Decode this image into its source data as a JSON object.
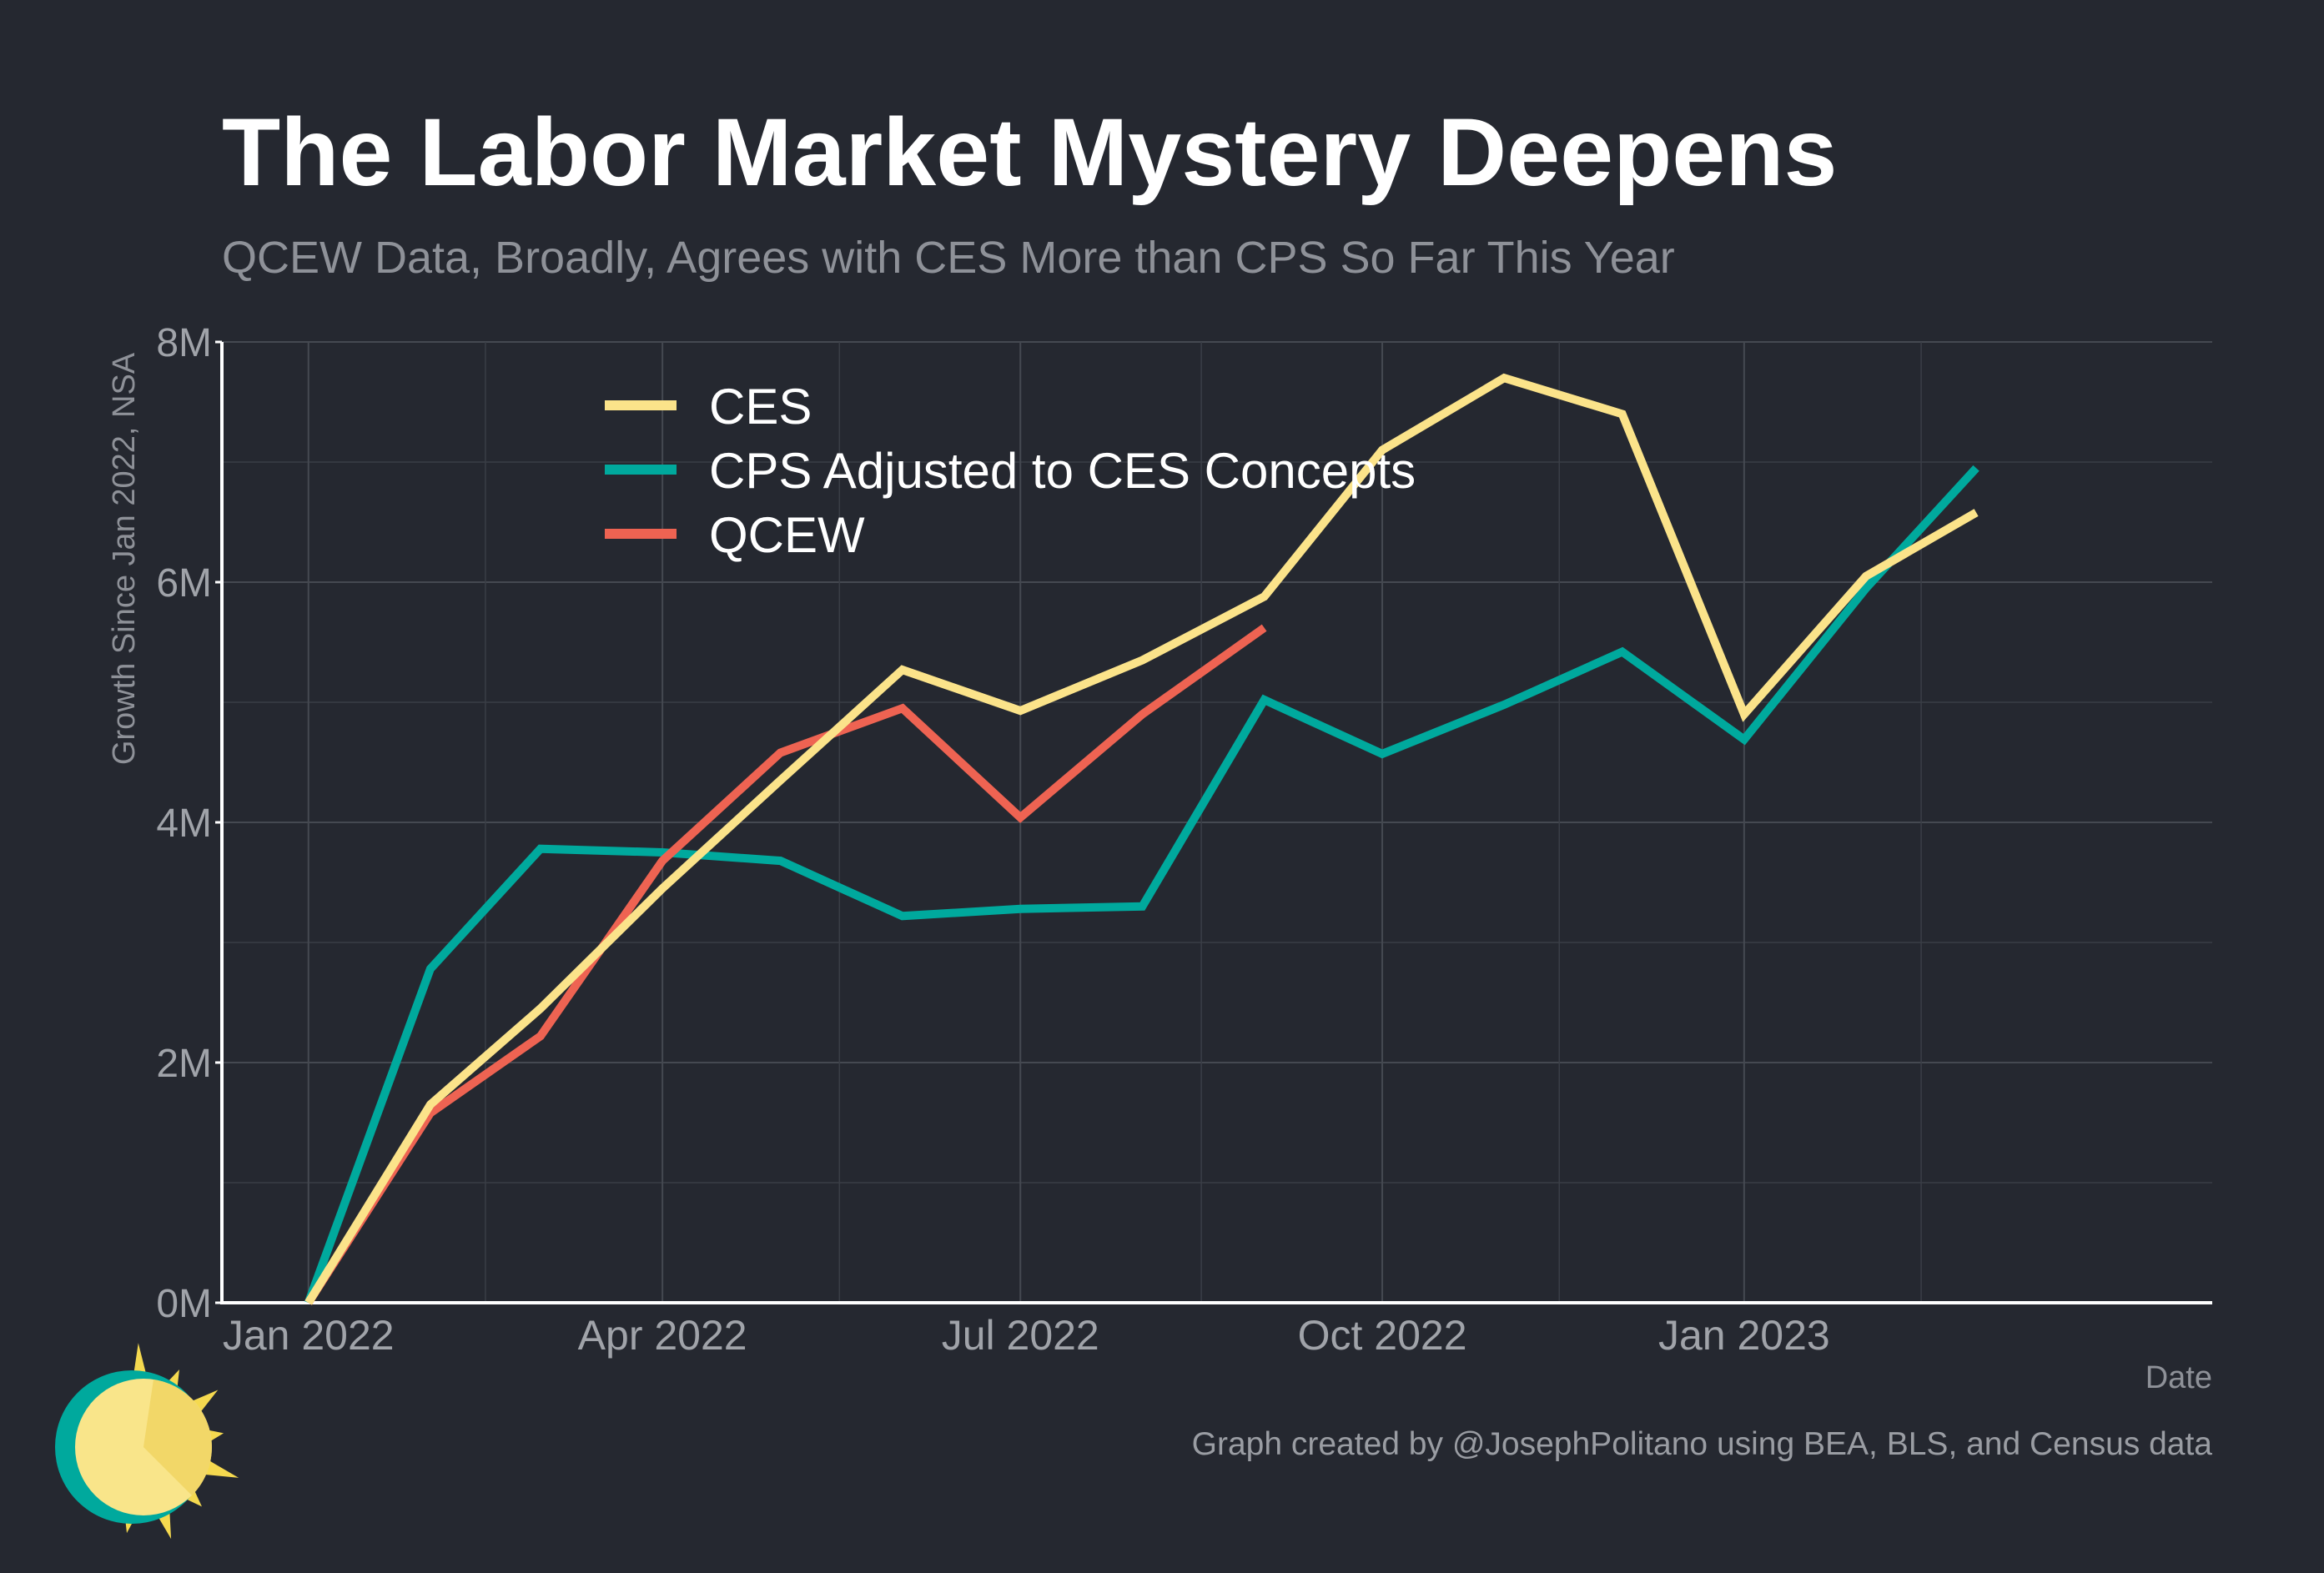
{
  "title": "The Labor Market Mystery Deepens",
  "subtitle": "QCEW Data, Broadly, Agrees with CES More than CPS So Far This Year",
  "caption": "Graph created by @JosephPolitano using BEA, BLS, and Census data",
  "logo": {
    "icon": "sun-logo-icon",
    "colors": {
      "ring": "#00a99d",
      "face": "#f9e58a",
      "rays": "#f5d94f"
    }
  },
  "chart_data": {
    "type": "line",
    "xlabel": "Date",
    "ylabel": "Growth Since Jan 2022, NSA",
    "ylim": [
      0,
      8000000
    ],
    "y_ticks": [
      0,
      2000000,
      4000000,
      6000000,
      8000000
    ],
    "y_tick_labels": [
      "0M",
      "2M",
      "4M",
      "6M",
      "8M"
    ],
    "x_range": [
      "2021-12-10",
      "2023-04-30"
    ],
    "x_ticks": [
      "2022-01-01",
      "2022-04-01",
      "2022-07-01",
      "2022-10-01",
      "2023-01-01"
    ],
    "x_tick_labels": [
      "Jan 2022",
      "Apr 2022",
      "Jul 2022",
      "Oct 2022",
      "Jan 2023"
    ],
    "x_minor_ticks": [
      "2022-02-15",
      "2022-05-16",
      "2022-08-16",
      "2022-11-15",
      "2023-02-15"
    ],
    "grid": true,
    "legend_position": "top-left",
    "series": [
      {
        "name": "CES",
        "color": "#fbe38a",
        "x": [
          "2022-01-01",
          "2022-02-01",
          "2022-03-01",
          "2022-04-01",
          "2022-05-01",
          "2022-06-01",
          "2022-07-01",
          "2022-08-01",
          "2022-09-01",
          "2022-10-01",
          "2022-11-01",
          "2022-12-01",
          "2023-01-01",
          "2023-02-01",
          "2023-03-01"
        ],
        "values": [
          0,
          1650000,
          2450000,
          3450000,
          4350000,
          5270000,
          4930000,
          5350000,
          5880000,
          7100000,
          7700000,
          7400000,
          4900000,
          6050000,
          6580000
        ]
      },
      {
        "name": "CPS Adjusted to CES Concepts",
        "color": "#00a99d",
        "x": [
          "2022-01-01",
          "2022-02-01",
          "2022-03-01",
          "2022-04-01",
          "2022-05-01",
          "2022-06-01",
          "2022-07-01",
          "2022-08-01",
          "2022-09-01",
          "2022-10-01",
          "2022-11-01",
          "2022-12-01",
          "2023-01-01",
          "2023-02-01",
          "2023-03-01"
        ],
        "values": [
          0,
          2780000,
          3780000,
          3750000,
          3680000,
          3220000,
          3280000,
          3300000,
          5020000,
          4570000,
          4980000,
          5420000,
          4690000,
          5950000,
          6950000
        ]
      },
      {
        "name": "QCEW",
        "color": "#ee6352",
        "x": [
          "2022-01-01",
          "2022-02-01",
          "2022-03-01",
          "2022-04-01",
          "2022-05-01",
          "2022-06-01",
          "2022-07-01",
          "2022-08-01",
          "2022-09-01"
        ],
        "values": [
          0,
          1580000,
          2220000,
          3680000,
          4580000,
          4950000,
          4040000,
          4900000,
          5620000
        ]
      }
    ]
  }
}
